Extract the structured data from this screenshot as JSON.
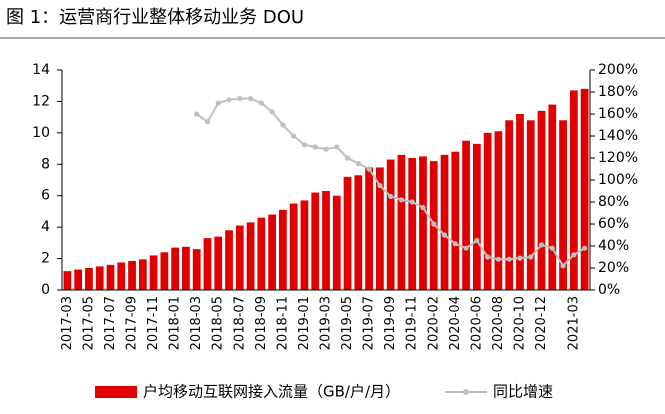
{
  "chart_data": {
    "type": "bar-line",
    "title": "图 1：运营商行业整体移动业务 DOU",
    "categories": [
      "2017-03",
      null,
      "2017-05",
      null,
      "2017-07",
      null,
      "2017-09",
      null,
      "2017-11",
      null,
      "2018-01",
      null,
      "2018-03",
      null,
      "2018-05",
      null,
      "2018-07",
      null,
      "2018-09",
      null,
      "2018-11",
      null,
      "2019-01",
      null,
      "2019-03",
      null,
      "2019-05",
      null,
      "2019-07",
      null,
      "2019-09",
      null,
      "2019-11",
      null,
      "2020-02",
      null,
      "2020-04",
      null,
      "2020-06",
      null,
      "2020-08",
      null,
      "2020-10",
      null,
      "2020-12",
      null,
      null,
      "2021-03",
      null
    ],
    "series": [
      {
        "name": "户均移动互联网接入流量（GB/户/月）",
        "color": "#e00000",
        "type": "bar",
        "values": [
          1.2,
          1.3,
          1.4,
          1.5,
          1.6,
          1.75,
          1.85,
          1.95,
          2.2,
          2.4,
          2.7,
          2.75,
          2.6,
          3.3,
          3.4,
          3.8,
          4.1,
          4.3,
          4.6,
          4.8,
          5.1,
          5.5,
          5.7,
          6.2,
          6.3,
          6.0,
          7.2,
          7.3,
          7.8,
          7.8,
          8.3,
          8.6,
          8.4,
          8.5,
          8.2,
          8.6,
          8.8,
          9.5,
          9.3,
          10.0,
          10.1,
          10.8,
          11.2,
          10.8,
          11.4,
          11.8,
          10.8,
          12.7,
          12.8
        ]
      },
      {
        "name": "同比增速",
        "color": "#bfbfbf",
        "type": "line",
        "axis": "y2",
        "values": [
          null,
          null,
          null,
          null,
          null,
          null,
          null,
          null,
          null,
          null,
          null,
          null,
          160,
          153,
          170,
          173,
          174,
          174,
          170,
          162,
          150,
          140,
          132,
          130,
          128,
          130,
          120,
          115,
          110,
          95,
          85,
          82,
          80,
          75,
          60,
          50,
          42,
          38,
          45,
          30,
          28,
          28,
          29,
          30,
          41,
          38,
          22,
          32,
          38
        ]
      }
    ],
    "ylim": [
      0,
      14
    ],
    "yticks": [
      0,
      2,
      4,
      6,
      8,
      10,
      12,
      14
    ],
    "y2lim": [
      0,
      200
    ],
    "y2ticks": [
      {
        "value": 0,
        "label": "0%"
      },
      {
        "value": 20,
        "label": "20%"
      },
      {
        "value": 40,
        "label": "40%"
      },
      {
        "value": 60,
        "label": "60%"
      },
      {
        "value": 80,
        "label": "80%"
      },
      {
        "value": 100,
        "label": "100%"
      },
      {
        "value": 120,
        "label": "120%"
      },
      {
        "value": 140,
        "label": "140%"
      },
      {
        "value": 160,
        "label": "160%"
      },
      {
        "value": 180,
        "label": "180%"
      },
      {
        "value": 200,
        "label": "200%"
      }
    ],
    "legend": "bottom"
  }
}
